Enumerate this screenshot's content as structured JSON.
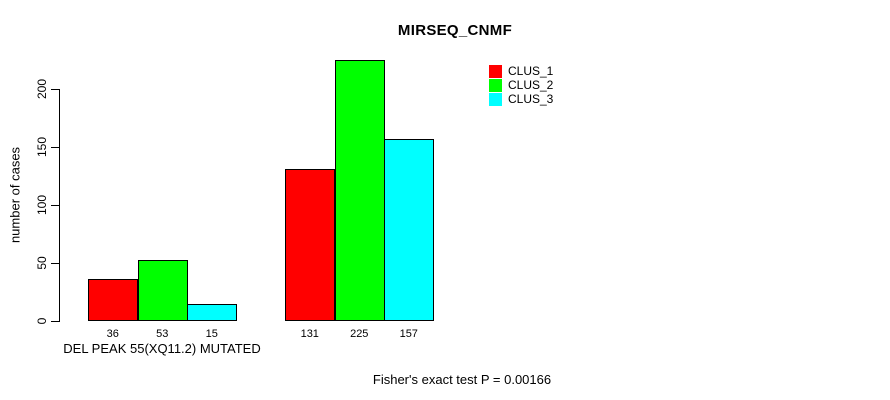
{
  "chart_data": {
    "type": "bar",
    "title": "MIRSEQ_CNMF",
    "ylabel": "number of cases",
    "footer": "Fisher's exact test P = 0.00166",
    "yticks": [
      0,
      50,
      100,
      150,
      200
    ],
    "ylim": [
      0,
      232
    ],
    "grid": false,
    "legend_position": "top-right",
    "group_labels": [
      "DEL PEAK 55(XQ11.2) MUTATED",
      ""
    ],
    "series": [
      {
        "name": "CLUS_1",
        "color": "#FF0000",
        "values": [
          36,
          131
        ]
      },
      {
        "name": "CLUS_2",
        "color": "#00FF00",
        "values": [
          53,
          225
        ]
      },
      {
        "name": "CLUS_3",
        "color": "#00FFFF",
        "values": [
          15,
          157
        ]
      }
    ],
    "bar_outline_color": "#000000",
    "show_bar_value_labels": true
  }
}
